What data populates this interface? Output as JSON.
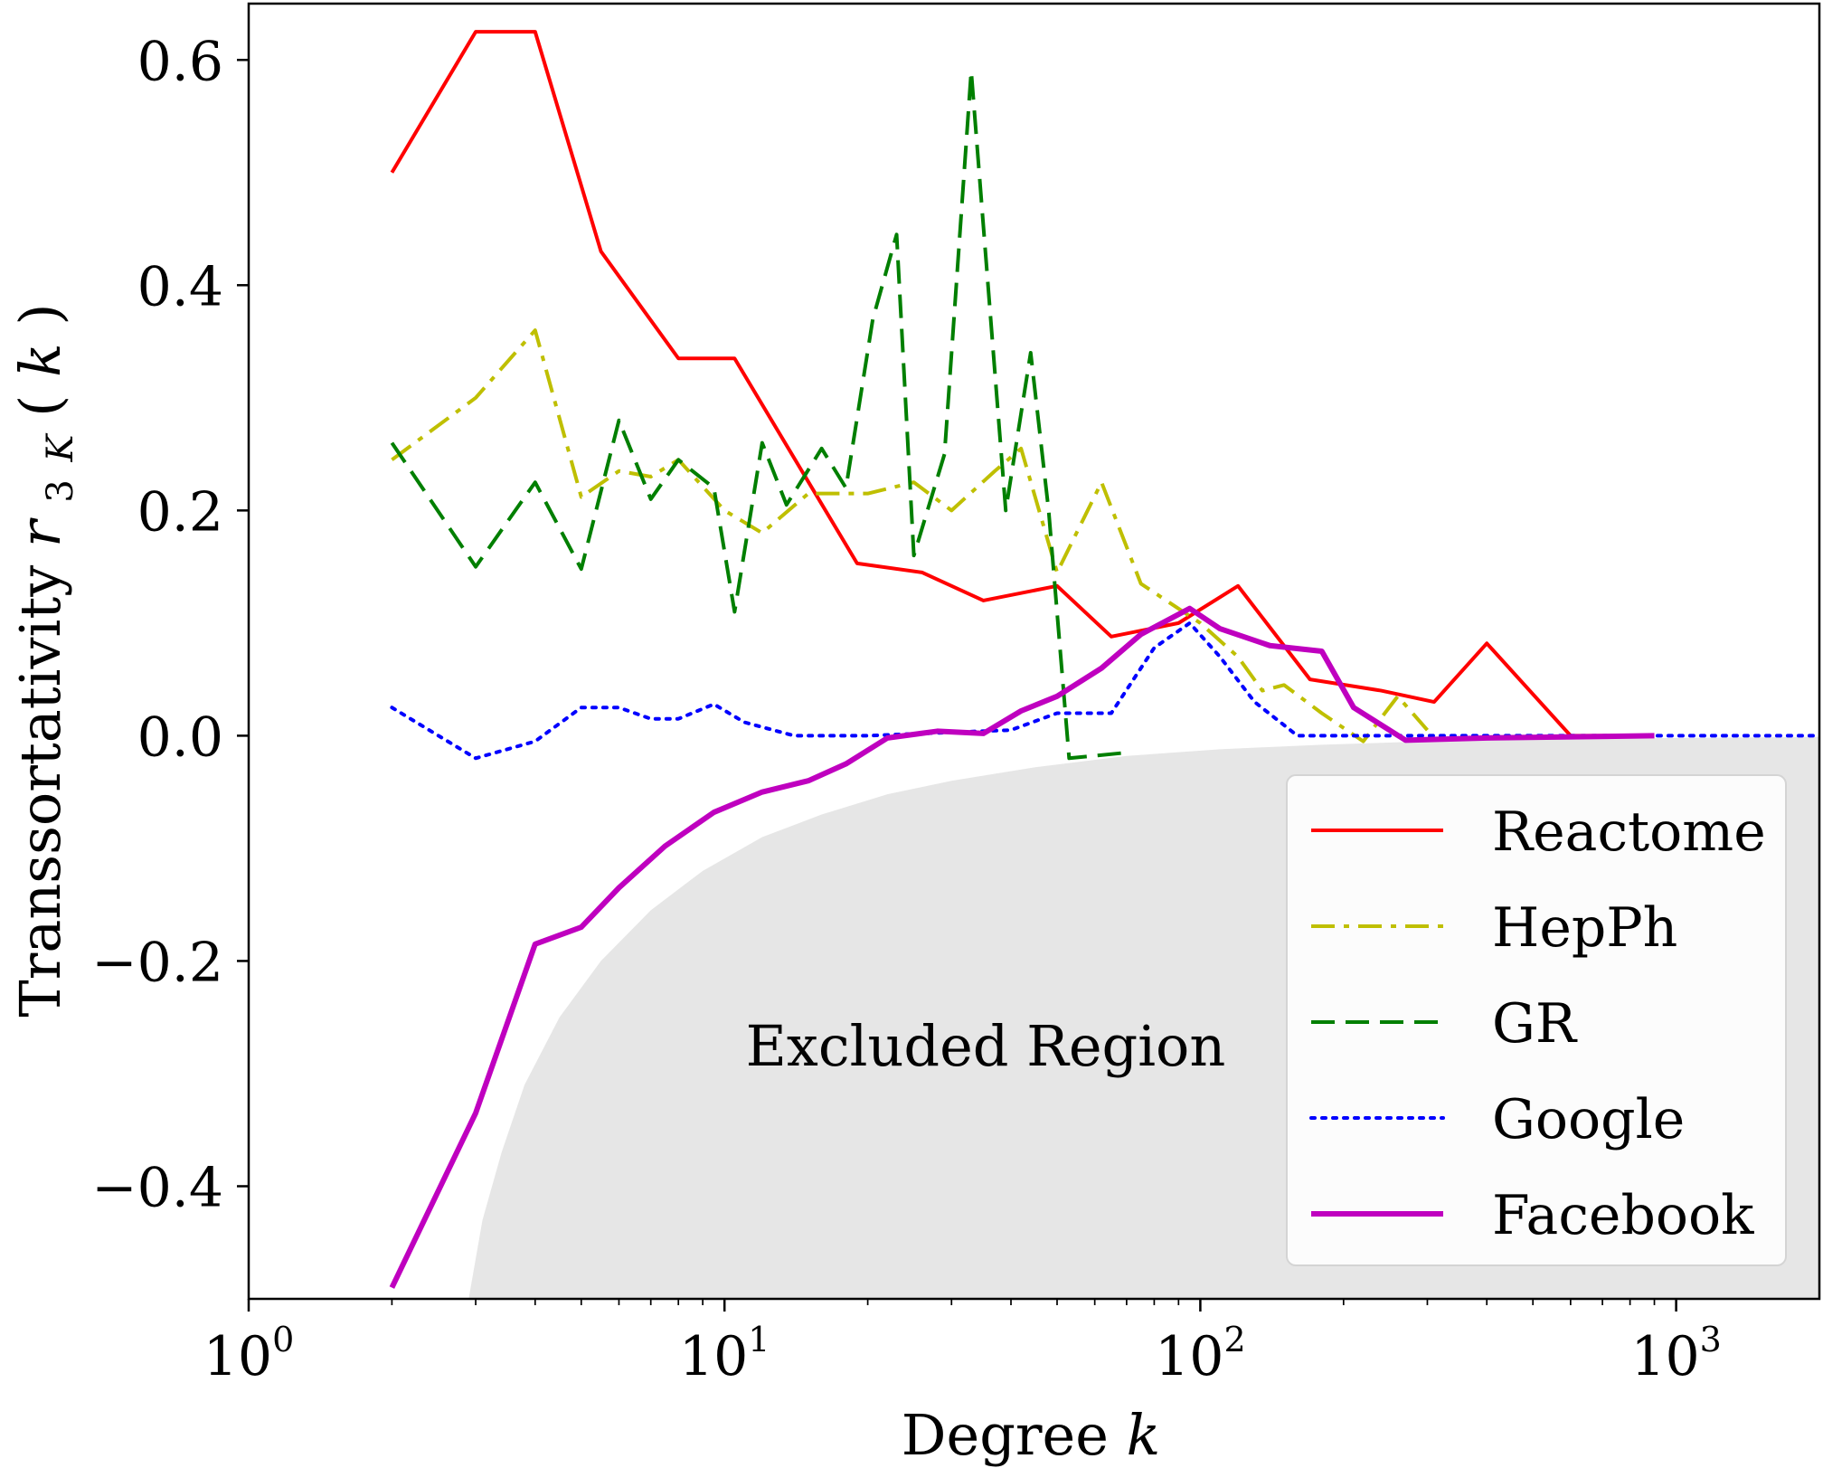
{
  "chart_data": {
    "type": "line",
    "xscale": "log",
    "xlabel": "Degree k",
    "ylabel": "Transsortativity r_3K(k)",
    "xlim": [
      1,
      2000
    ],
    "ylim": [
      -0.5,
      0.65
    ],
    "legend_position": "bottom-right",
    "grid": false,
    "x_tick_values": [
      1,
      10,
      100,
      1000
    ],
    "x_tick_labels": [
      "10",
      "10",
      "10",
      "10"
    ],
    "x_tick_exponents": [
      "0",
      "1",
      "2",
      "3"
    ],
    "y_tick_values": [
      0.6,
      0.4,
      0.2,
      0.0,
      -0.2,
      -0.4
    ],
    "y_tick_labels": [
      "0.6",
      "0.4",
      "0.2",
      "0.0",
      "−0.2",
      "−0.4"
    ],
    "excluded_region": {
      "label": "Excluded Region",
      "fill": "#e6e6e6",
      "boundary": [
        [
          2.9,
          -0.5
        ],
        [
          3.1,
          -0.43
        ],
        [
          3.4,
          -0.37
        ],
        [
          3.8,
          -0.31
        ],
        [
          4.5,
          -0.25
        ],
        [
          5.5,
          -0.2
        ],
        [
          7,
          -0.155
        ],
        [
          9,
          -0.12
        ],
        [
          12,
          -0.09
        ],
        [
          16,
          -0.07
        ],
        [
          22,
          -0.052
        ],
        [
          30,
          -0.04
        ],
        [
          45,
          -0.028
        ],
        [
          70,
          -0.018
        ],
        [
          110,
          -0.012
        ],
        [
          180,
          -0.008
        ],
        [
          300,
          -0.005
        ],
        [
          600,
          -0.003
        ],
        [
          1000,
          -0.002
        ],
        [
          2000,
          -0.001
        ]
      ]
    },
    "series": [
      {
        "name": "Reactome",
        "color": "#ff0000",
        "dash": "solid",
        "points": [
          [
            2,
            0.5
          ],
          [
            3,
            0.625
          ],
          [
            4,
            0.625
          ],
          [
            5.5,
            0.43
          ],
          [
            8,
            0.335
          ],
          [
            10.5,
            0.335
          ],
          [
            19,
            0.153
          ],
          [
            26,
            0.145
          ],
          [
            35,
            0.12
          ],
          [
            50,
            0.133
          ],
          [
            65,
            0.088
          ],
          [
            90,
            0.1
          ],
          [
            120,
            0.133
          ],
          [
            170,
            0.05
          ],
          [
            240,
            0.04
          ],
          [
            310,
            0.03
          ],
          [
            400,
            0.082
          ],
          [
            600,
            0.0
          ],
          [
            900,
            0.0
          ]
        ]
      },
      {
        "name": "HepPh",
        "color": "#bfbf00",
        "dash": "dashdot",
        "points": [
          [
            2,
            0.245
          ],
          [
            3,
            0.3
          ],
          [
            4,
            0.36
          ],
          [
            5,
            0.212
          ],
          [
            6,
            0.235
          ],
          [
            7,
            0.23
          ],
          [
            8,
            0.245
          ],
          [
            10,
            0.2
          ],
          [
            12,
            0.18
          ],
          [
            15,
            0.215
          ],
          [
            20,
            0.215
          ],
          [
            25,
            0.225
          ],
          [
            30,
            0.2
          ],
          [
            37,
            0.235
          ],
          [
            42,
            0.255
          ],
          [
            50,
            0.145
          ],
          [
            62,
            0.225
          ],
          [
            75,
            0.135
          ],
          [
            100,
            0.1
          ],
          [
            120,
            0.07
          ],
          [
            135,
            0.04
          ],
          [
            150,
            0.045
          ],
          [
            180,
            0.02
          ],
          [
            220,
            -0.005
          ],
          [
            260,
            0.035
          ],
          [
            300,
            0.005
          ]
        ]
      },
      {
        "name": "GR",
        "color": "#007f00",
        "dash": "dashed",
        "points": [
          [
            2,
            0.26
          ],
          [
            3,
            0.15
          ],
          [
            4,
            0.225
          ],
          [
            5,
            0.148
          ],
          [
            6,
            0.28
          ],
          [
            7,
            0.21
          ],
          [
            8,
            0.245
          ],
          [
            9.5,
            0.22
          ],
          [
            10.5,
            0.11
          ],
          [
            12,
            0.26
          ],
          [
            13.5,
            0.205
          ],
          [
            16,
            0.255
          ],
          [
            18,
            0.22
          ],
          [
            20.5,
            0.37
          ],
          [
            23,
            0.445
          ],
          [
            25,
            0.16
          ],
          [
            29,
            0.25
          ],
          [
            33,
            0.59
          ],
          [
            39,
            0.2
          ],
          [
            44,
            0.34
          ],
          [
            48,
            0.2
          ],
          [
            53,
            -0.02
          ],
          [
            70,
            -0.015
          ]
        ]
      },
      {
        "name": "Google",
        "color": "#0000ff",
        "dash": "dotted",
        "points": [
          [
            2,
            0.025
          ],
          [
            3,
            -0.02
          ],
          [
            4,
            -0.005
          ],
          [
            5,
            0.025
          ],
          [
            6,
            0.025
          ],
          [
            7,
            0.015
          ],
          [
            8,
            0.015
          ],
          [
            9.5,
            0.028
          ],
          [
            11,
            0.012
          ],
          [
            14,
            0.0
          ],
          [
            20,
            0.0
          ],
          [
            30,
            0.003
          ],
          [
            40,
            0.005
          ],
          [
            50,
            0.02
          ],
          [
            65,
            0.02
          ],
          [
            80,
            0.078
          ],
          [
            95,
            0.1
          ],
          [
            110,
            0.07
          ],
          [
            130,
            0.03
          ],
          [
            160,
            0.0
          ],
          [
            250,
            0.0
          ],
          [
            500,
            0.0
          ],
          [
            1000,
            0.0
          ],
          [
            2000,
            0.0
          ]
        ]
      },
      {
        "name": "Facebook",
        "color": "#bf00bf",
        "dash": "solid",
        "points": [
          [
            2,
            -0.49
          ],
          [
            3,
            -0.335
          ],
          [
            4,
            -0.185
          ],
          [
            5,
            -0.17
          ],
          [
            6,
            -0.135
          ],
          [
            7.5,
            -0.098
          ],
          [
            9.5,
            -0.068
          ],
          [
            12,
            -0.05
          ],
          [
            15,
            -0.04
          ],
          [
            18,
            -0.025
          ],
          [
            22,
            -0.002
          ],
          [
            28,
            0.004
          ],
          [
            35,
            0.002
          ],
          [
            42,
            0.022
          ],
          [
            50,
            0.035
          ],
          [
            62,
            0.06
          ],
          [
            75,
            0.09
          ],
          [
            95,
            0.113
          ],
          [
            110,
            0.095
          ],
          [
            140,
            0.08
          ],
          [
            180,
            0.075
          ],
          [
            210,
            0.025
          ],
          [
            270,
            -0.004
          ],
          [
            400,
            -0.002
          ],
          [
            900,
            0.0
          ]
        ]
      }
    ]
  }
}
